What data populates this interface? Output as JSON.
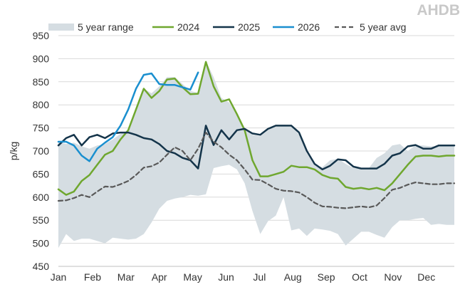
{
  "logo_text": "AHDB",
  "chart_data": {
    "type": "line",
    "title": "",
    "xlabel": "",
    "ylabel": "p/kg",
    "ylim": [
      450,
      950
    ],
    "yticks": [
      450,
      500,
      550,
      600,
      650,
      700,
      750,
      800,
      850,
      900,
      950
    ],
    "xlim": [
      1,
      52
    ],
    "months": [
      "Jan",
      "Feb",
      "Mar",
      "Apr",
      "May",
      "Jun",
      "Jul",
      "Aug",
      "Sep",
      "Oct",
      "Nov",
      "Dec"
    ],
    "month_weeks": [
      1,
      5.4,
      9.7,
      14,
      18.3,
      22.6,
      26.9,
      31.2,
      35.5,
      39.8,
      44.1,
      48.4
    ],
    "grid": true,
    "legend_position": "top",
    "range": {
      "name": "5 year range",
      "color": "#d5dde2",
      "x": [
        1,
        2,
        3,
        4,
        5,
        6,
        7,
        8,
        9,
        10,
        11,
        12,
        13,
        14,
        15,
        16,
        17,
        18,
        19,
        20,
        21,
        22,
        23,
        24,
        25,
        26,
        27,
        28,
        29,
        30,
        31,
        32,
        33,
        34,
        35,
        36,
        37,
        38,
        39,
        40,
        41,
        42,
        43,
        44,
        45,
        46,
        47,
        48,
        49,
        50,
        51,
        52
      ],
      "low": [
        490,
        520,
        505,
        510,
        510,
        505,
        500,
        512,
        510,
        508,
        510,
        520,
        545,
        575,
        592,
        597,
        600,
        605,
        603,
        606,
        663,
        667,
        670,
        660,
        630,
        570,
        520,
        548,
        560,
        600,
        528,
        532,
        516,
        532,
        530,
        527,
        520,
        495,
        510,
        525,
        525,
        518,
        512,
        535,
        550,
        550,
        553,
        555,
        540,
        542,
        540,
        540
      ],
      "high": [
        720,
        715,
        718,
        710,
        705,
        712,
        715,
        725,
        737,
        745,
        790,
        835,
        825,
        840,
        860,
        860,
        845,
        830,
        826,
        895,
        860,
        815,
        805,
        780,
        750,
        735,
        732,
        745,
        757,
        757,
        756,
        735,
        695,
        670,
        665,
        680,
        683,
        672,
        663,
        662,
        663,
        685,
        695,
        712,
        715,
        700,
        712,
        712,
        710,
        710,
        710,
        710
      ]
    },
    "series": [
      {
        "name": "2024",
        "color": "#6fa72f",
        "dash": false,
        "x": [
          1,
          2,
          3,
          4,
          5,
          6,
          7,
          8,
          9,
          10,
          11,
          12,
          13,
          14,
          15,
          16,
          17,
          18,
          19,
          20,
          21,
          22,
          23,
          24,
          25,
          26,
          27,
          28,
          29,
          30,
          31,
          32,
          33,
          34,
          35,
          36,
          37,
          38,
          39,
          40,
          41,
          42,
          43,
          44,
          45,
          46,
          47,
          48,
          49,
          50,
          51,
          52
        ],
        "values": [
          617,
          605,
          612,
          635,
          648,
          670,
          692,
          700,
          725,
          745,
          790,
          835,
          815,
          830,
          855,
          857,
          838,
          823,
          824,
          893,
          840,
          807,
          812,
          780,
          745,
          680,
          645,
          645,
          650,
          655,
          668,
          665,
          665,
          660,
          648,
          642,
          640,
          622,
          618,
          620,
          617,
          620,
          615,
          630,
          650,
          670,
          688,
          690,
          690,
          688,
          690,
          690
        ]
      },
      {
        "name": "2025",
        "color": "#14344a",
        "dash": false,
        "x": [
          1,
          2,
          3,
          4,
          5,
          6,
          7,
          8,
          9,
          10,
          11,
          12,
          13,
          14,
          15,
          16,
          17,
          18,
          19,
          20,
          21,
          22,
          23,
          24,
          25,
          26,
          27,
          28,
          29,
          30,
          31,
          32,
          33,
          34,
          35,
          36,
          37,
          38,
          39,
          40,
          41,
          42,
          43,
          44,
          45,
          46,
          47,
          48,
          49,
          50,
          51,
          52
        ],
        "values": [
          712,
          728,
          735,
          712,
          730,
          735,
          728,
          738,
          740,
          740,
          735,
          728,
          725,
          715,
          700,
          695,
          685,
          680,
          662,
          755,
          713,
          745,
          725,
          745,
          748,
          738,
          735,
          748,
          755,
          755,
          755,
          740,
          700,
          672,
          660,
          668,
          682,
          680,
          666,
          662,
          662,
          662,
          672,
          690,
          695,
          710,
          713,
          705,
          705,
          712,
          712,
          712
        ]
      },
      {
        "name": "2026",
        "color": "#1a8fcf",
        "dash": false,
        "x": [
          1,
          2,
          3,
          4,
          5,
          6,
          7,
          8,
          9,
          10,
          11,
          12,
          13,
          14,
          15,
          16,
          17,
          18,
          19
        ],
        "values": [
          720,
          720,
          712,
          690,
          678,
          705,
          718,
          730,
          755,
          790,
          835,
          865,
          868,
          845,
          843,
          843,
          838,
          833,
          870
        ]
      },
      {
        "name": "5 year avg",
        "color": "#595959",
        "dash": true,
        "x": [
          1,
          2,
          3,
          4,
          5,
          6,
          7,
          8,
          9,
          10,
          11,
          12,
          13,
          14,
          15,
          16,
          17,
          18,
          19,
          20,
          21,
          22,
          23,
          24,
          25,
          26,
          27,
          28,
          29,
          30,
          31,
          32,
          33,
          34,
          35,
          36,
          37,
          38,
          39,
          40,
          41,
          42,
          43,
          44,
          45,
          46,
          47,
          48,
          49,
          50,
          51,
          52
        ],
        "values": [
          592,
          593,
          598,
          605,
          600,
          612,
          623,
          622,
          628,
          635,
          648,
          664,
          667,
          675,
          692,
          708,
          700,
          680,
          705,
          740,
          720,
          708,
          692,
          680,
          660,
          638,
          637,
          628,
          618,
          614,
          613,
          610,
          600,
          588,
          580,
          579,
          577,
          576,
          578,
          580,
          578,
          582,
          598,
          616,
          620,
          627,
          632,
          630,
          628,
          628,
          630,
          630
        ]
      }
    ]
  }
}
